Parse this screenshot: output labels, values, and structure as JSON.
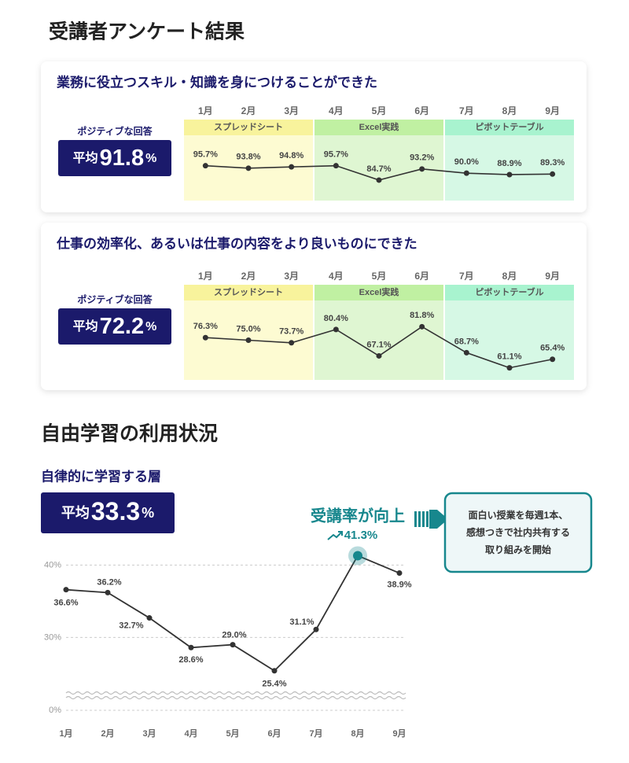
{
  "page_title": "受講者アンケート結果",
  "section_title": "自由学習の利用状況",
  "chart_data": [
    {
      "type": "line",
      "title": "業務に役立つスキル・知識を身につけることができた",
      "positive_label": "ポジティブな回答",
      "average_label": "平均",
      "average_value": 91.8,
      "average_unit": "%",
      "categories": [
        "1月",
        "2月",
        "3月",
        "4月",
        "5月",
        "6月",
        "7月",
        "8月",
        "9月"
      ],
      "groups": [
        {
          "name": "スプレッドシート",
          "count": 3,
          "color": "#fdfbd2",
          "header_color": "#f8f39c"
        },
        {
          "name": "Excel実践",
          "count": 3,
          "color": "#dff6d2",
          "header_color": "#c0f0a2"
        },
        {
          "name": "ピボットテーブル",
          "count": 3,
          "color": "#d6f8e5",
          "header_color": "#a8f3cf"
        }
      ],
      "values": [
        95.7,
        93.8,
        94.8,
        95.7,
        84.7,
        93.2,
        90.0,
        88.9,
        89.3
      ],
      "value_labels": [
        "95.7%",
        "93.8%",
        "94.8%",
        "95.7%",
        "84.7%",
        "93.2%",
        "90.0%",
        "88.9%",
        "89.3%"
      ],
      "color": "#333333",
      "ylim": [
        69,
        119
      ]
    },
    {
      "type": "line",
      "title": "仕事の効率化、あるいは仕事の内容をより良いものにできた",
      "positive_label": "ポジティブな回答",
      "average_label": "平均",
      "average_value": 72.2,
      "average_unit": "%",
      "categories": [
        "1月",
        "2月",
        "3月",
        "4月",
        "5月",
        "6月",
        "7月",
        "8月",
        "9月"
      ],
      "groups": [
        {
          "name": "スプレッドシート",
          "count": 3,
          "color": "#fdfbd2",
          "header_color": "#f8f39c"
        },
        {
          "name": "Excel実践",
          "count": 3,
          "color": "#dff6d2",
          "header_color": "#c0f0a2"
        },
        {
          "name": "ピボットテーブル",
          "count": 3,
          "color": "#d6f8e5",
          "header_color": "#a8f3cf"
        }
      ],
      "values": [
        76.3,
        75.0,
        73.7,
        80.4,
        67.1,
        81.8,
        68.7,
        61.1,
        65.4
      ],
      "value_labels": [
        "76.3%",
        "75.0%",
        "73.7%",
        "80.4%",
        "67.1%",
        "81.8%",
        "68.7%",
        "61.1%",
        "65.4%"
      ],
      "color": "#333333",
      "ylim": [
        55,
        95
      ]
    },
    {
      "type": "line",
      "title": "自律的に学習する層",
      "average_label": "平均",
      "average_value": 33.3,
      "average_unit": "%",
      "categories": [
        "1月",
        "2月",
        "3月",
        "4月",
        "5月",
        "6月",
        "7月",
        "8月",
        "9月"
      ],
      "values": [
        36.6,
        36.2,
        32.7,
        28.6,
        29.0,
        25.4,
        31.1,
        41.3,
        38.9
      ],
      "value_labels": [
        "36.6%",
        "36.2%",
        "32.7%",
        "28.6%",
        "29.0%",
        "25.4%",
        "31.1%",
        "41.3%",
        "38.9%"
      ],
      "color": "#333333",
      "highlight_color": "#17878d",
      "ylim": [
        22,
        42
      ],
      "yticks": [
        {
          "value": 0,
          "label": "0%"
        },
        {
          "value": 30,
          "label": "30%"
        },
        {
          "value": 40,
          "label": "40%"
        }
      ],
      "grid": true,
      "axis_break": true,
      "annotation": "受講率が向上",
      "callout": [
        "面白い授業を毎週1本、",
        "感想つきで社内共有する",
        "取り組みを開始"
      ]
    }
  ]
}
